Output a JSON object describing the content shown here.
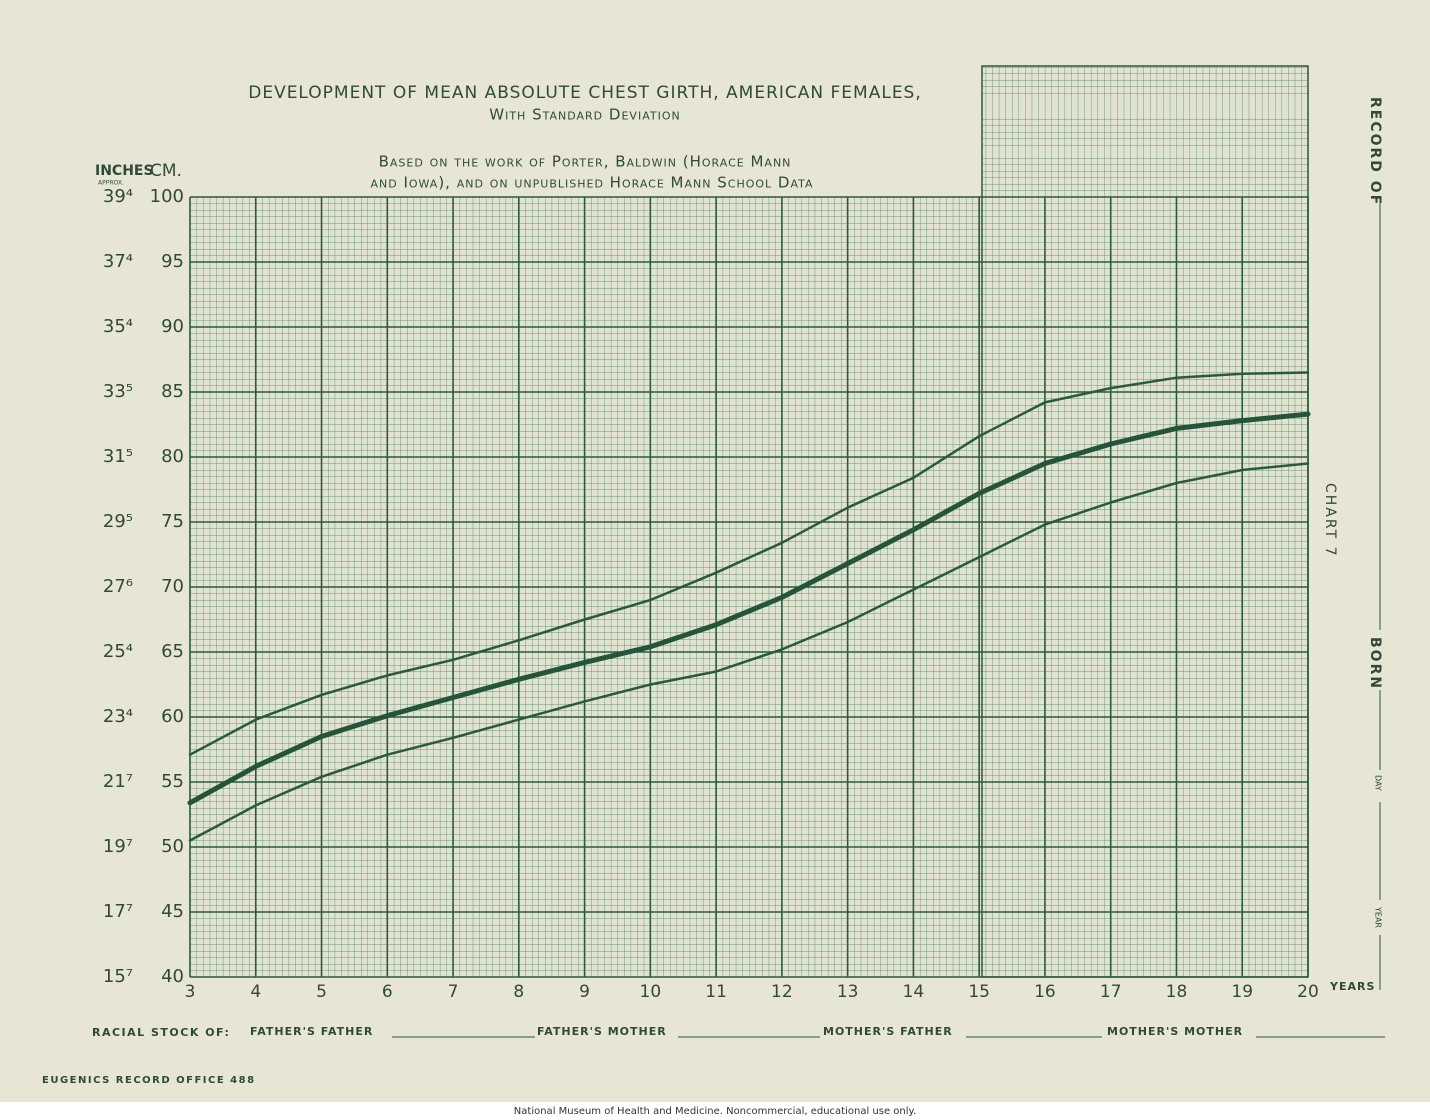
{
  "chart_data": {
    "type": "line",
    "title": "DEVELOPMENT OF MEAN ABSOLUTE CHEST GIRTH, AMERICAN FEMALES,",
    "subtitle": "With Standard Deviation",
    "source": [
      "Based on the work of Porter, Baldwin (Horace Mann",
      "and Iowa), and on unpublished Horace Mann School Data"
    ],
    "x": [
      3,
      4,
      5,
      6,
      7,
      8,
      9,
      10,
      11,
      12,
      13,
      14,
      15,
      16,
      17,
      18,
      19,
      20
    ],
    "xlim": [
      3,
      20
    ],
    "xticks": [
      3,
      4,
      5,
      6,
      7,
      8,
      9,
      10,
      11,
      12,
      13,
      14,
      15,
      16,
      17,
      18,
      19,
      20
    ],
    "x_label": "YEARS",
    "ylim": [
      40,
      100
    ],
    "yticks": [
      40,
      45,
      50,
      55,
      60,
      65,
      70,
      75,
      80,
      85,
      90,
      95,
      100
    ],
    "y_label": "CM.",
    "y_alt_label": "INCHES",
    "y_alt_note": "APPROX.",
    "y_alt_ticks": [
      {
        "value": 40,
        "label": "15⁷"
      },
      {
        "value": 45,
        "label": "17⁷"
      },
      {
        "value": 50,
        "label": "19⁷"
      },
      {
        "value": 55,
        "label": "21⁷"
      },
      {
        "value": 60,
        "label": "23⁴"
      },
      {
        "value": 65,
        "label": "25⁴"
      },
      {
        "value": 70,
        "label": "27⁶"
      },
      {
        "value": 75,
        "label": "29⁵"
      },
      {
        "value": 80,
        "label": "31⁵"
      },
      {
        "value": 85,
        "label": "33⁵"
      },
      {
        "value": 90,
        "label": "35⁴"
      },
      {
        "value": 95,
        "label": "37⁴"
      },
      {
        "value": 100,
        "label": "39⁴"
      }
    ],
    "grid": true,
    "series": [
      {
        "color": "#2a5a3c",
        "line_width": 2.5,
        "values": [
          57.1,
          59.8,
          61.7,
          63.2,
          64.4,
          65.9,
          67.5,
          69,
          71.1,
          73.4,
          76.1,
          78.4,
          81.6,
          84.2,
          85.3,
          86.1,
          86.4,
          86.5
        ]
      },
      {
        "color": "#24543a",
        "line_width": 5,
        "values": [
          53.4,
          56.2,
          58.5,
          60.1,
          61.5,
          62.9,
          64.2,
          65.4,
          67.1,
          69.2,
          71.8,
          74.4,
          77.2,
          79.5,
          81,
          82.2,
          82.8,
          83.3
        ]
      },
      {
        "color": "#2a5a3c",
        "line_width": 2.5,
        "values": [
          50.5,
          53.2,
          55.4,
          57.1,
          58.4,
          59.8,
          61.2,
          62.5,
          63.5,
          65.2,
          67.3,
          69.8,
          72.3,
          74.8,
          76.5,
          78,
          79,
          79.5
        ]
      }
    ]
  },
  "form": {
    "record_of": "RECORD OF",
    "born": "BORN",
    "day": "DAY",
    "year": "YEAR",
    "chart_number": "CHART 7",
    "racial_stock": "RACIAL STOCK OF:",
    "fields": [
      "FATHER'S FATHER",
      "FATHER'S MOTHER",
      "MOTHER'S FATHER",
      "MOTHER'S MOTHER"
    ],
    "office": "EUGENICS RECORD OFFICE 488",
    "credit": "National Museum of Health and Medicine. Noncommercial, educational use only."
  }
}
